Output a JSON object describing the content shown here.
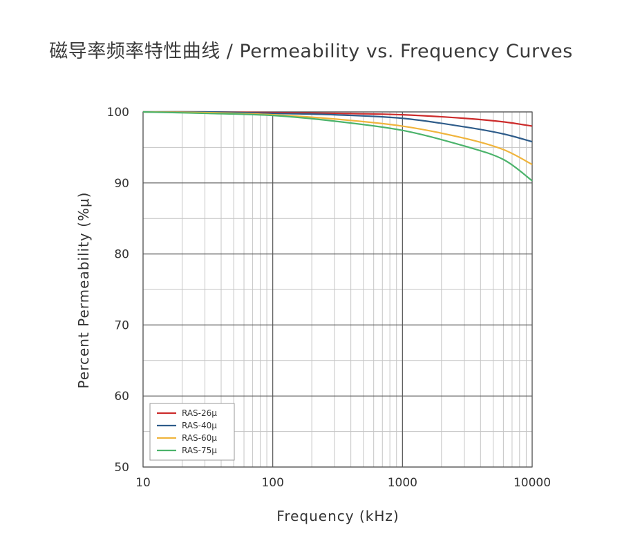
{
  "chart_data": {
    "type": "line",
    "title": "磁导率频率特性曲线 / Permeability vs. Frequency Curves",
    "xlabel": "Frequency (kHz)",
    "ylabel": "Percent Permeability (%μ)",
    "x_scale": "log",
    "xlim": [
      10,
      10000
    ],
    "ylim": [
      50,
      100
    ],
    "x_ticks": [
      "10",
      "100",
      "1000",
      "10000"
    ],
    "y_ticks": [
      "100",
      "90",
      "80",
      "70",
      "60",
      "50"
    ],
    "grid": true,
    "legend_position": "bottom-left",
    "series": [
      {
        "name": "RAS-26μ",
        "color": "#cc2b2b",
        "points": [
          [
            10,
            100
          ],
          [
            30,
            100
          ],
          [
            100,
            99.9
          ],
          [
            300,
            99.8
          ],
          [
            1000,
            99.6
          ],
          [
            3000,
            99.1
          ],
          [
            6000,
            98.6
          ],
          [
            10000,
            98.0
          ]
        ]
      },
      {
        "name": "RAS-40μ",
        "color": "#2e5c8a",
        "points": [
          [
            10,
            100
          ],
          [
            30,
            100
          ],
          [
            100,
            99.8
          ],
          [
            300,
            99.6
          ],
          [
            1000,
            99.1
          ],
          [
            3000,
            97.9
          ],
          [
            6000,
            96.9
          ],
          [
            10000,
            95.8
          ]
        ]
      },
      {
        "name": "RAS-60μ",
        "color": "#f0b43c",
        "points": [
          [
            10,
            100
          ],
          [
            30,
            99.9
          ],
          [
            100,
            99.6
          ],
          [
            300,
            99.0
          ],
          [
            1000,
            98.0
          ],
          [
            3000,
            96.3
          ],
          [
            6000,
            94.7
          ],
          [
            10000,
            92.6
          ]
        ]
      },
      {
        "name": "RAS-75μ",
        "color": "#4bb36b",
        "points": [
          [
            10,
            100
          ],
          [
            30,
            99.8
          ],
          [
            100,
            99.5
          ],
          [
            300,
            98.7
          ],
          [
            1000,
            97.4
          ],
          [
            3000,
            95.2
          ],
          [
            6000,
            93.3
          ],
          [
            10000,
            90.3
          ]
        ]
      }
    ]
  }
}
